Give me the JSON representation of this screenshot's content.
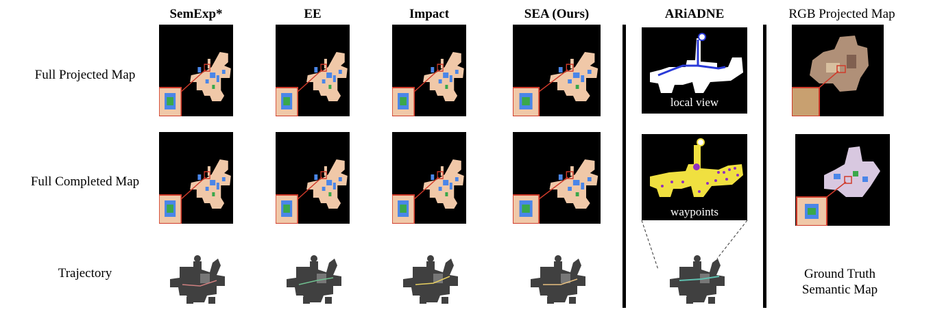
{
  "columns": [
    "SemExp*",
    "EE",
    "Impact",
    "SEA (Ours)",
    "ARiADNE",
    "RGB Projected Map"
  ],
  "rows": [
    "Full Projected Map",
    "Full Completed Map",
    "Trajectory"
  ],
  "ariadne_captions": [
    "local view",
    "waypoints"
  ],
  "gt_caption": [
    "Ground Truth",
    "Semantic Map"
  ],
  "colors": {
    "panel_bg": "#000000",
    "floor": "#f0c8a8",
    "object_blue": "#4a86e8",
    "object_green": "#3aa84a",
    "highlight_red": "#d03a2a",
    "path_blue": "#2a3ad8",
    "path_yellow": "#f0e040",
    "waypoint_purple": "#9030c0",
    "trajectory_gray": "#404040"
  }
}
